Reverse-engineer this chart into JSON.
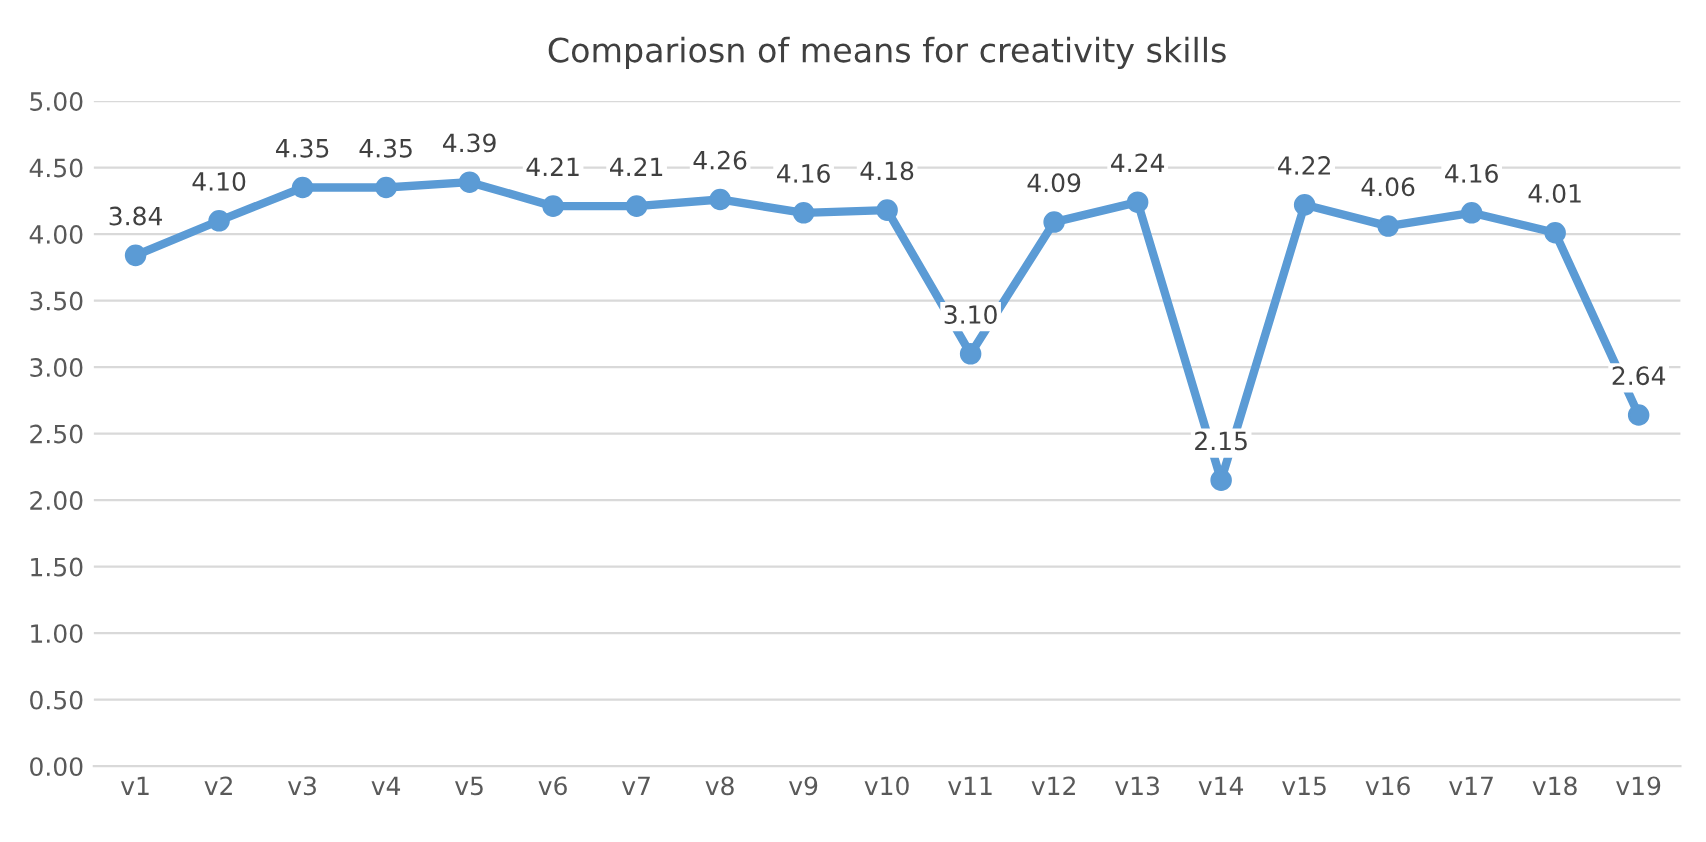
{
  "chart_data": {
    "type": "line",
    "title": "Compariosn of means for creativity skills",
    "categories": [
      "v1",
      "v2",
      "v3",
      "v4",
      "v5",
      "v6",
      "v7",
      "v8",
      "v9",
      "v10",
      "v11",
      "v12",
      "v13",
      "v14",
      "v15",
      "v16",
      "v17",
      "v18",
      "v19"
    ],
    "series": [
      {
        "color": "#5b9bd5",
        "values": [
          3.84,
          4.1,
          4.35,
          4.35,
          4.39,
          4.21,
          4.21,
          4.26,
          4.16,
          4.18,
          3.1,
          4.09,
          4.24,
          2.15,
          4.22,
          4.06,
          4.16,
          4.01,
          2.64
        ],
        "value_labels": [
          "3.84",
          "4.10",
          "4.35",
          "4.35",
          "4.39",
          "4.21",
          "4.21",
          "4.26",
          "4.16",
          "4.18",
          "3.10",
          "4.09",
          "4.24",
          "2.15",
          "4.22",
          "4.06",
          "4.16",
          "4.01",
          "2.64"
        ]
      }
    ],
    "ylim": [
      0,
      5
    ],
    "yticks": [
      {
        "value": 0,
        "label": "0.00"
      },
      {
        "value": 0.5,
        "label": "0.50"
      },
      {
        "value": 1,
        "label": "1.00"
      },
      {
        "value": 1.5,
        "label": "1.50"
      },
      {
        "value": 2,
        "label": "2.00"
      },
      {
        "value": 2.5,
        "label": "2.50"
      },
      {
        "value": 3,
        "label": "3.00"
      },
      {
        "value": 3.5,
        "label": "3.50"
      },
      {
        "value": 4,
        "label": "4.00"
      },
      {
        "value": 4.5,
        "label": "4.50"
      },
      {
        "value": 5,
        "label": "5.00"
      }
    ],
    "grid": "y",
    "marker": "circle",
    "line_style": "solid",
    "legend": false
  }
}
